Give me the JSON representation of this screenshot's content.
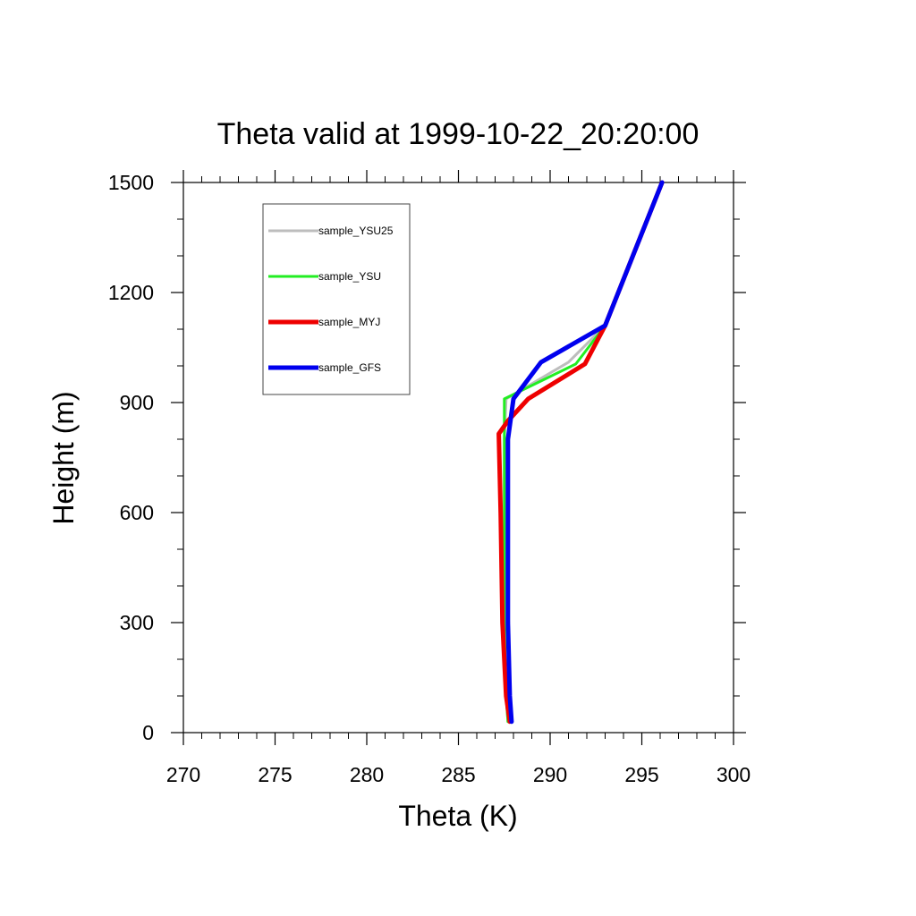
{
  "chart_data": {
    "type": "line",
    "title": "Theta valid at 1999-10-22_20:20:00",
    "xlabel": "Theta (K)",
    "ylabel": "Height (m)",
    "xlim": [
      270,
      300
    ],
    "ylim": [
      0,
      1500
    ],
    "xticks": [
      270,
      275,
      280,
      285,
      290,
      295,
      300
    ],
    "yticks": [
      0,
      300,
      600,
      900,
      1200,
      1500
    ],
    "xtick_labels": [
      "270",
      "275",
      "280",
      "285",
      "290",
      "295",
      "300"
    ],
    "ytick_labels": [
      "0",
      "300",
      "600",
      "900",
      "1200",
      "1500"
    ],
    "grid": false,
    "legend_position": "top-left",
    "series": [
      {
        "name": "sample_YSU25",
        "color": "#bdbdbd",
        "points": [
          [
            287.7,
            30
          ],
          [
            287.6,
            100
          ],
          [
            287.5,
            300
          ],
          [
            287.5,
            600
          ],
          [
            287.5,
            800
          ],
          [
            287.6,
            910
          ],
          [
            291.0,
            1010
          ],
          [
            293.0,
            1110
          ],
          [
            296.1,
            1500
          ]
        ]
      },
      {
        "name": "sample_YSU",
        "color": "#22ee22",
        "points": [
          [
            287.7,
            30
          ],
          [
            287.6,
            100
          ],
          [
            287.5,
            300
          ],
          [
            287.5,
            600
          ],
          [
            287.5,
            800
          ],
          [
            287.5,
            910
          ],
          [
            291.4,
            1005
          ],
          [
            293.0,
            1110
          ],
          [
            296.1,
            1500
          ]
        ]
      },
      {
        "name": "sample_MYJ",
        "color": "#ee0000",
        "points": [
          [
            287.8,
            30
          ],
          [
            287.6,
            100
          ],
          [
            287.4,
            300
          ],
          [
            287.3,
            600
          ],
          [
            287.2,
            815
          ],
          [
            287.7,
            850
          ],
          [
            288.8,
            910
          ],
          [
            291.9,
            1005
          ],
          [
            293.0,
            1110
          ],
          [
            296.1,
            1500
          ]
        ]
      },
      {
        "name": "sample_GFS",
        "color": "#0000ee",
        "points": [
          [
            287.9,
            30
          ],
          [
            287.8,
            100
          ],
          [
            287.7,
            300
          ],
          [
            287.7,
            600
          ],
          [
            287.7,
            800
          ],
          [
            288.0,
            910
          ],
          [
            289.5,
            1010
          ],
          [
            293.0,
            1110
          ],
          [
            296.1,
            1500
          ]
        ]
      }
    ]
  }
}
